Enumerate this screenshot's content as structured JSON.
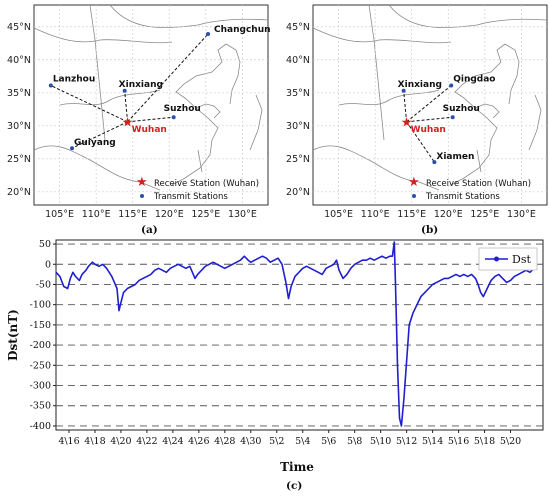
{
  "maps": [
    {
      "panel_label": "(a)",
      "lat_ticks": [
        "45°N",
        "40°N",
        "35°N",
        "30°N",
        "25°N",
        "20°N"
      ],
      "lon_ticks": [
        "105°E",
        "110°E",
        "115°E",
        "120°E",
        "125°E",
        "130°E"
      ],
      "receive_station": {
        "name": "Wuhan",
        "lon": 114.3,
        "lat": 30.6
      },
      "transmit_stations": [
        {
          "name": "Changchun",
          "lon": 125.3,
          "lat": 43.9
        },
        {
          "name": "Lanzhou",
          "lon": 103.8,
          "lat": 36.1
        },
        {
          "name": "Xinxiang",
          "lon": 113.9,
          "lat": 35.3
        },
        {
          "name": "Suzhou",
          "lon": 120.6,
          "lat": 31.3
        },
        {
          "name": "Guiyang",
          "lon": 106.7,
          "lat": 26.6
        }
      ],
      "legend": {
        "receive": "Receive Station (Wuhan)",
        "transmit": "Transmit Stations"
      }
    },
    {
      "panel_label": "(b)",
      "lat_ticks": [
        "45°N",
        "40°N",
        "35°N",
        "30°N",
        "25°N",
        "20°N"
      ],
      "lon_ticks": [
        "105°E",
        "110°E",
        "115°E",
        "120°E",
        "125°E",
        "130°E"
      ],
      "receive_station": {
        "name": "Wuhan",
        "lon": 114.3,
        "lat": 30.6
      },
      "transmit_stations": [
        {
          "name": "Qingdao",
          "lon": 120.4,
          "lat": 36.1
        },
        {
          "name": "Xinxiang",
          "lon": 113.9,
          "lat": 35.3
        },
        {
          "name": "Suzhou",
          "lon": 120.6,
          "lat": 31.3
        },
        {
          "name": "Xiamen",
          "lon": 118.1,
          "lat": 24.5
        }
      ],
      "legend": {
        "receive": "Receive Station (Wuhan)",
        "transmit": "Transmit Stations"
      }
    }
  ],
  "chart_data": {
    "type": "line",
    "panel_label": "(c)",
    "xlabel": "Time",
    "ylabel": "Dst(nT)",
    "ylim": [
      -410,
      60
    ],
    "yticks": [
      50,
      0,
      -50,
      -100,
      -150,
      -200,
      -250,
      -300,
      -350,
      -400
    ],
    "xticks": [
      "4\\16",
      "4\\18",
      "4\\20",
      "4\\22",
      "4\\24",
      "4\\26",
      "4\\28",
      "4\\30",
      "5\\2",
      "5\\4",
      "5\\6",
      "5\\8",
      "5\\10",
      "5\\12",
      "5\\14",
      "5\\16",
      "5\\18",
      "5\\20"
    ],
    "grid": "horizontal dashed",
    "legend_position": "top-right",
    "series": [
      {
        "name": "Dst",
        "color": "#1f1fd1",
        "x": [
          "4\\15",
          "4\\16",
          "4\\17",
          "4\\18",
          "4\\19",
          "4\\20",
          "4\\21",
          "4\\22",
          "4\\23",
          "4\\24",
          "4\\25",
          "4\\26",
          "4\\27",
          "4\\28",
          "4\\29",
          "4\\30",
          "5\\1",
          "5\\2",
          "5\\3",
          "5\\4",
          "5\\5",
          "5\\6",
          "5\\7",
          "5\\8",
          "5\\9",
          "5\\10",
          "5\\11",
          "5\\12",
          "5\\13",
          "5\\14",
          "5\\15",
          "5\\16",
          "5\\17",
          "5\\18",
          "5\\19",
          "5\\20",
          "5\\21"
        ],
        "points": [
          [
            0.0,
            -20
          ],
          [
            0.3,
            -30
          ],
          [
            0.6,
            -55
          ],
          [
            0.9,
            -60
          ],
          [
            1.1,
            -35
          ],
          [
            1.3,
            -20
          ],
          [
            1.5,
            -30
          ],
          [
            1.8,
            -40
          ],
          [
            2.0,
            -25
          ],
          [
            2.3,
            -15
          ],
          [
            2.5,
            -5
          ],
          [
            2.8,
            5
          ],
          [
            3.0,
            0
          ],
          [
            3.3,
            -5
          ],
          [
            3.6,
            0
          ],
          [
            3.9,
            -10
          ],
          [
            4.1,
            -20
          ],
          [
            4.3,
            -30
          ],
          [
            4.5,
            -45
          ],
          [
            4.7,
            -60
          ],
          [
            4.85,
            -115
          ],
          [
            5.0,
            -95
          ],
          [
            5.2,
            -70
          ],
          [
            5.5,
            -60
          ],
          [
            5.8,
            -55
          ],
          [
            6.1,
            -50
          ],
          [
            6.4,
            -40
          ],
          [
            6.7,
            -35
          ],
          [
            7.0,
            -30
          ],
          [
            7.3,
            -25
          ],
          [
            7.6,
            -15
          ],
          [
            7.9,
            -10
          ],
          [
            8.2,
            -15
          ],
          [
            8.5,
            -20
          ],
          [
            8.8,
            -10
          ],
          [
            9.1,
            -5
          ],
          [
            9.4,
            0
          ],
          [
            9.7,
            -5
          ],
          [
            10.0,
            -10
          ],
          [
            10.3,
            -5
          ],
          [
            10.5,
            -20
          ],
          [
            10.7,
            -35
          ],
          [
            10.9,
            -25
          ],
          [
            11.2,
            -15
          ],
          [
            11.5,
            -5
          ],
          [
            11.8,
            0
          ],
          [
            12.1,
            5
          ],
          [
            12.4,
            0
          ],
          [
            12.7,
            -5
          ],
          [
            13.0,
            -10
          ],
          [
            13.3,
            -5
          ],
          [
            13.6,
            0
          ],
          [
            13.9,
            5
          ],
          [
            14.2,
            10
          ],
          [
            14.5,
            20
          ],
          [
            14.8,
            10
          ],
          [
            15.0,
            5
          ],
          [
            15.3,
            10
          ],
          [
            15.6,
            15
          ],
          [
            15.9,
            20
          ],
          [
            16.2,
            15
          ],
          [
            16.5,
            5
          ],
          [
            16.8,
            10
          ],
          [
            17.1,
            15
          ],
          [
            17.4,
            0
          ],
          [
            17.7,
            -45
          ],
          [
            17.9,
            -85
          ],
          [
            18.1,
            -55
          ],
          [
            18.4,
            -30
          ],
          [
            18.7,
            -20
          ],
          [
            19.0,
            -10
          ],
          [
            19.3,
            -5
          ],
          [
            19.6,
            -10
          ],
          [
            19.9,
            -15
          ],
          [
            20.2,
            -20
          ],
          [
            20.5,
            -25
          ],
          [
            20.8,
            -10
          ],
          [
            21.1,
            -5
          ],
          [
            21.4,
            0
          ],
          [
            21.6,
            10
          ],
          [
            21.8,
            -15
          ],
          [
            22.1,
            -35
          ],
          [
            22.4,
            -25
          ],
          [
            22.7,
            -10
          ],
          [
            23.0,
            0
          ],
          [
            23.3,
            5
          ],
          [
            23.6,
            10
          ],
          [
            23.9,
            10
          ],
          [
            24.2,
            15
          ],
          [
            24.5,
            10
          ],
          [
            24.8,
            15
          ],
          [
            25.1,
            20
          ],
          [
            25.4,
            15
          ],
          [
            25.7,
            20
          ],
          [
            25.9,
            20
          ],
          [
            26.05,
            55
          ],
          [
            26.15,
            -60
          ],
          [
            26.3,
            -250
          ],
          [
            26.45,
            -380
          ],
          [
            26.6,
            -400
          ],
          [
            26.8,
            -330
          ],
          [
            27.0,
            -240
          ],
          [
            27.2,
            -150
          ],
          [
            27.5,
            -120
          ],
          [
            27.8,
            -100
          ],
          [
            28.1,
            -80
          ],
          [
            28.4,
            -70
          ],
          [
            28.7,
            -60
          ],
          [
            29.0,
            -50
          ],
          [
            29.3,
            -45
          ],
          [
            29.6,
            -40
          ],
          [
            29.9,
            -35
          ],
          [
            30.2,
            -35
          ],
          [
            30.5,
            -30
          ],
          [
            30.8,
            -25
          ],
          [
            31.1,
            -30
          ],
          [
            31.4,
            -25
          ],
          [
            31.7,
            -30
          ],
          [
            32.0,
            -25
          ],
          [
            32.3,
            -35
          ],
          [
            32.5,
            -50
          ],
          [
            32.7,
            -70
          ],
          [
            32.9,
            -80
          ],
          [
            33.2,
            -60
          ],
          [
            33.5,
            -40
          ],
          [
            33.8,
            -30
          ],
          [
            34.1,
            -25
          ],
          [
            34.4,
            -35
          ],
          [
            34.7,
            -45
          ],
          [
            35.0,
            -40
          ],
          [
            35.3,
            -30
          ],
          [
            35.6,
            -25
          ],
          [
            35.9,
            -20
          ],
          [
            36.2,
            -15
          ],
          [
            36.5,
            -20
          ],
          [
            36.8,
            -10
          ]
        ]
      }
    ]
  }
}
